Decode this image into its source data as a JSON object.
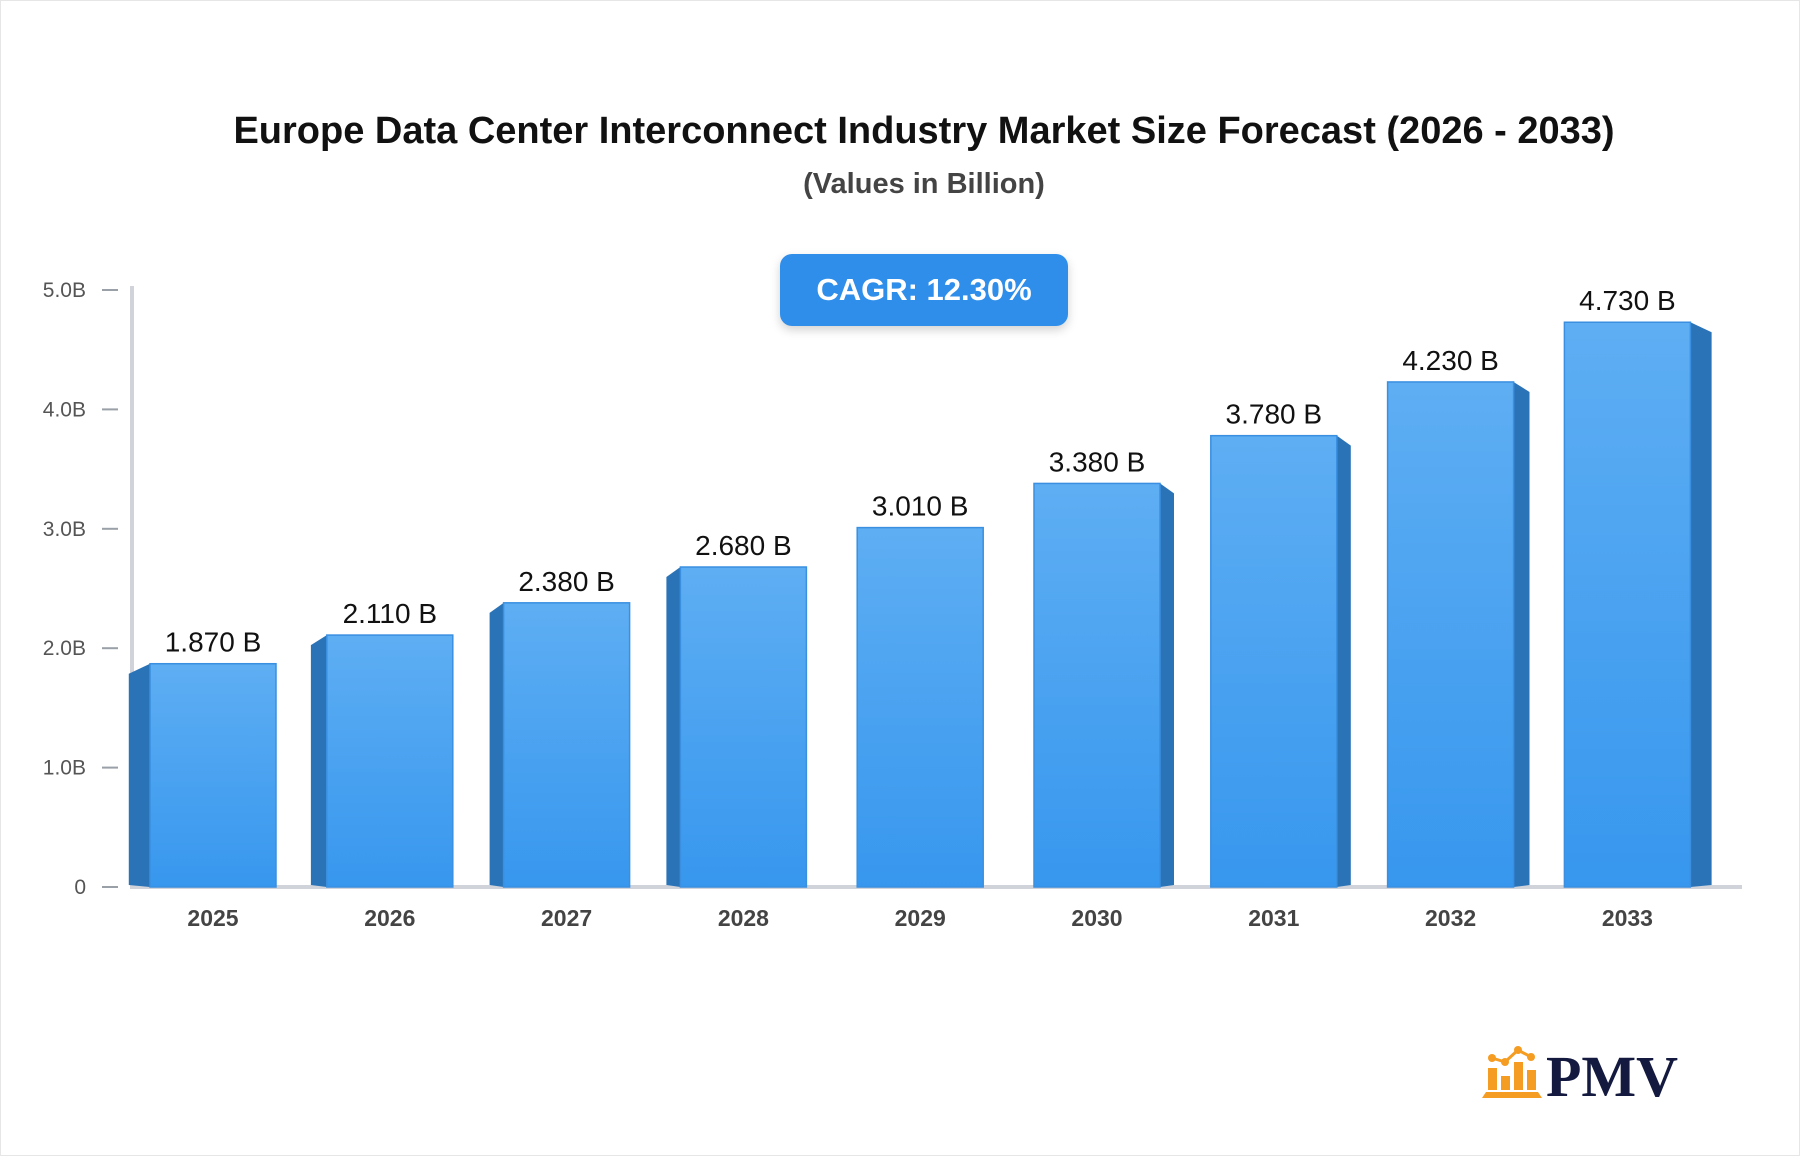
{
  "chart_data": {
    "type": "bar",
    "title": "Europe Data Center Interconnect Industry Market Size Forecast (2026 - 2033)",
    "subtitle": "(Values in Billion)",
    "annotation": "CAGR: 12.30%",
    "categories": [
      "2025",
      "2026",
      "2027",
      "2028",
      "2029",
      "2030",
      "2031",
      "2032",
      "2033"
    ],
    "values": [
      1.87,
      2.11,
      2.38,
      2.68,
      3.01,
      3.38,
      3.78,
      4.23,
      4.73
    ],
    "data_labels": [
      "1.870 B",
      "2.110 B",
      "2.380 B",
      "2.680 B",
      "3.010 B",
      "3.380 B",
      "3.780 B",
      "4.230 B",
      "4.730 B"
    ],
    "y_ticks": [
      0,
      1,
      2,
      3,
      4,
      5
    ],
    "y_tick_labels": [
      "0",
      "1.0B",
      "2.0B",
      "3.0B",
      "4.0B",
      "5.0B"
    ],
    "ylim": [
      0,
      5
    ],
    "xlabel": "",
    "ylabel": "",
    "grid": false,
    "colors": {
      "bar_top": "#5eaef3",
      "bar_bottom": "#3797ee",
      "bar_side": "#2b73b7",
      "accent": "#2e8eea"
    }
  },
  "logo": {
    "text": "PMV",
    "icon": "bar-chart-trend-icon",
    "colors": {
      "icon": "#f59c23",
      "text": "#141a3f"
    }
  }
}
